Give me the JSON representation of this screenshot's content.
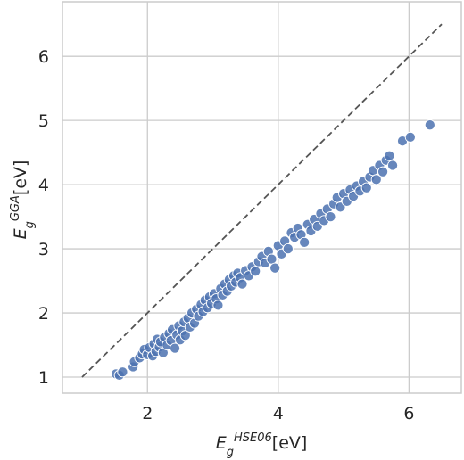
{
  "chart_data": {
    "type": "scatter",
    "xlabel": {
      "base": "E",
      "sub": "g",
      "sup": "HSE06",
      "unit": "[eV]"
    },
    "ylabel": {
      "base": "E",
      "sub": "g",
      "sup": "GGA",
      "unit": "[eV]"
    },
    "xlim": [
      0.7,
      6.8
    ],
    "ylim": [
      0.75,
      6.85
    ],
    "xticks": [
      2,
      4,
      6
    ],
    "yticks": [
      1,
      2,
      3,
      4,
      5,
      6
    ],
    "grid": true,
    "reference_line": {
      "style": "dashed",
      "x": [
        1.0,
        6.5
      ],
      "y": [
        1.0,
        6.5
      ]
    },
    "colors": {
      "points": "#4c72b0",
      "reference_line": "#555555",
      "grid": "#cccccc",
      "frame": "#cccccc",
      "text": "#262626"
    },
    "points": [
      {
        "x": 1.52,
        "y": 1.05
      },
      {
        "x": 1.57,
        "y": 1.03
      },
      {
        "x": 1.62,
        "y": 1.08
      },
      {
        "x": 1.78,
        "y": 1.16
      },
      {
        "x": 1.8,
        "y": 1.24
      },
      {
        "x": 1.88,
        "y": 1.3
      },
      {
        "x": 1.92,
        "y": 1.36
      },
      {
        "x": 1.95,
        "y": 1.43
      },
      {
        "x": 2.0,
        "y": 1.35
      },
      {
        "x": 2.03,
        "y": 1.46
      },
      {
        "x": 2.08,
        "y": 1.33
      },
      {
        "x": 2.1,
        "y": 1.52
      },
      {
        "x": 2.13,
        "y": 1.4
      },
      {
        "x": 2.15,
        "y": 1.59
      },
      {
        "x": 2.18,
        "y": 1.47
      },
      {
        "x": 2.2,
        "y": 1.55
      },
      {
        "x": 2.24,
        "y": 1.38
      },
      {
        "x": 2.26,
        "y": 1.62
      },
      {
        "x": 2.3,
        "y": 1.5
      },
      {
        "x": 2.33,
        "y": 1.68
      },
      {
        "x": 2.36,
        "y": 1.57
      },
      {
        "x": 2.38,
        "y": 1.74
      },
      {
        "x": 2.42,
        "y": 1.45
      },
      {
        "x": 2.45,
        "y": 1.66
      },
      {
        "x": 2.48,
        "y": 1.8
      },
      {
        "x": 2.5,
        "y": 1.58
      },
      {
        "x": 2.53,
        "y": 1.72
      },
      {
        "x": 2.56,
        "y": 1.86
      },
      {
        "x": 2.58,
        "y": 1.65
      },
      {
        "x": 2.62,
        "y": 1.92
      },
      {
        "x": 2.65,
        "y": 1.78
      },
      {
        "x": 2.68,
        "y": 2.0
      },
      {
        "x": 2.72,
        "y": 1.84
      },
      {
        "x": 2.75,
        "y": 2.06
      },
      {
        "x": 2.78,
        "y": 1.95
      },
      {
        "x": 2.82,
        "y": 2.13
      },
      {
        "x": 2.85,
        "y": 2.02
      },
      {
        "x": 2.88,
        "y": 2.2
      },
      {
        "x": 2.92,
        "y": 2.08
      },
      {
        "x": 2.95,
        "y": 2.25
      },
      {
        "x": 2.98,
        "y": 2.15
      },
      {
        "x": 3.02,
        "y": 2.3
      },
      {
        "x": 3.05,
        "y": 2.22
      },
      {
        "x": 3.08,
        "y": 2.12
      },
      {
        "x": 3.12,
        "y": 2.38
      },
      {
        "x": 3.15,
        "y": 2.28
      },
      {
        "x": 3.18,
        "y": 2.45
      },
      {
        "x": 3.22,
        "y": 2.34
      },
      {
        "x": 3.25,
        "y": 2.52
      },
      {
        "x": 3.28,
        "y": 2.42
      },
      {
        "x": 3.32,
        "y": 2.58
      },
      {
        "x": 3.35,
        "y": 2.48
      },
      {
        "x": 3.38,
        "y": 2.62
      },
      {
        "x": 3.42,
        "y": 2.55
      },
      {
        "x": 3.45,
        "y": 2.45
      },
      {
        "x": 3.5,
        "y": 2.66
      },
      {
        "x": 3.55,
        "y": 2.58
      },
      {
        "x": 3.6,
        "y": 2.72
      },
      {
        "x": 3.65,
        "y": 2.65
      },
      {
        "x": 3.7,
        "y": 2.8
      },
      {
        "x": 3.75,
        "y": 2.88
      },
      {
        "x": 3.8,
        "y": 2.78
      },
      {
        "x": 3.85,
        "y": 2.96
      },
      {
        "x": 3.9,
        "y": 2.84
      },
      {
        "x": 3.95,
        "y": 2.7
      },
      {
        "x": 4.0,
        "y": 3.05
      },
      {
        "x": 4.05,
        "y": 2.92
      },
      {
        "x": 4.1,
        "y": 3.12
      },
      {
        "x": 4.15,
        "y": 3.0
      },
      {
        "x": 4.2,
        "y": 3.25
      },
      {
        "x": 4.25,
        "y": 3.18
      },
      {
        "x": 4.3,
        "y": 3.32
      },
      {
        "x": 4.35,
        "y": 3.22
      },
      {
        "x": 4.4,
        "y": 3.1
      },
      {
        "x": 4.45,
        "y": 3.38
      },
      {
        "x": 4.5,
        "y": 3.28
      },
      {
        "x": 4.55,
        "y": 3.46
      },
      {
        "x": 4.6,
        "y": 3.35
      },
      {
        "x": 4.65,
        "y": 3.55
      },
      {
        "x": 4.7,
        "y": 3.44
      },
      {
        "x": 4.75,
        "y": 3.62
      },
      {
        "x": 4.8,
        "y": 3.5
      },
      {
        "x": 4.85,
        "y": 3.7
      },
      {
        "x": 4.9,
        "y": 3.8
      },
      {
        "x": 4.95,
        "y": 3.65
      },
      {
        "x": 5.0,
        "y": 3.86
      },
      {
        "x": 5.05,
        "y": 3.74
      },
      {
        "x": 5.1,
        "y": 3.92
      },
      {
        "x": 5.15,
        "y": 3.82
      },
      {
        "x": 5.2,
        "y": 3.98
      },
      {
        "x": 5.25,
        "y": 3.9
      },
      {
        "x": 5.3,
        "y": 4.05
      },
      {
        "x": 5.35,
        "y": 3.95
      },
      {
        "x": 5.4,
        "y": 4.12
      },
      {
        "x": 5.45,
        "y": 4.22
      },
      {
        "x": 5.5,
        "y": 4.08
      },
      {
        "x": 5.55,
        "y": 4.3
      },
      {
        "x": 5.6,
        "y": 4.2
      },
      {
        "x": 5.65,
        "y": 4.38
      },
      {
        "x": 5.7,
        "y": 4.45
      },
      {
        "x": 5.75,
        "y": 4.3
      },
      {
        "x": 5.9,
        "y": 4.68
      },
      {
        "x": 6.02,
        "y": 4.74
      },
      {
        "x": 6.32,
        "y": 4.93
      }
    ]
  }
}
